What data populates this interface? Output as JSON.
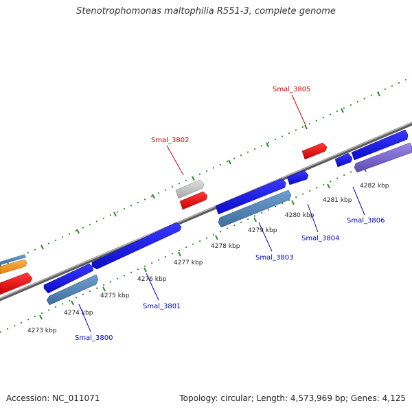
{
  "title": "Stenotrophomonas maltophilia R551-3, complete genome",
  "footer": {
    "accession": "Accession: NC_011071",
    "summary": "Topology: circular; Length: 4,573,969 bp; Genes: 4,125"
  },
  "ticks": [
    {
      "label": "4273 kbp"
    },
    {
      "label": "4274 kbp"
    },
    {
      "label": "4275 kbp"
    },
    {
      "label": "4276 kbp"
    },
    {
      "label": "4277 kbp"
    },
    {
      "label": "4278 kbp"
    },
    {
      "label": "4279 kbp"
    },
    {
      "label": "4280 kbp"
    },
    {
      "label": "4281 kbp"
    },
    {
      "label": "4282 kbp"
    }
  ],
  "gene_labels_top": [
    {
      "label": "Smal_3802",
      "color": "#cc0000"
    },
    {
      "label": "Smal_3805",
      "color": "#cc0000"
    }
  ],
  "gene_labels_bottom": [
    {
      "label": "Smal_3800",
      "color": "#0000cc"
    },
    {
      "label": "Smal_3801",
      "color": "#0000cc"
    },
    {
      "label": "Smal_3803",
      "color": "#0000cc"
    },
    {
      "label": "Smal_3804",
      "color": "#0000cc"
    },
    {
      "label": "Smal_3806",
      "color": "#0000cc"
    }
  ],
  "colors": {
    "backbone": "#808080",
    "tick_marks": "#2e8b2e",
    "gene_blue": "#1414e6",
    "gene_steelblue": "#4a7fb5",
    "gene_red": "#ee1111",
    "gene_grey": "#c8c8c8",
    "gene_purple": "#7b68cc",
    "gene_orange": "#f29a1e"
  }
}
